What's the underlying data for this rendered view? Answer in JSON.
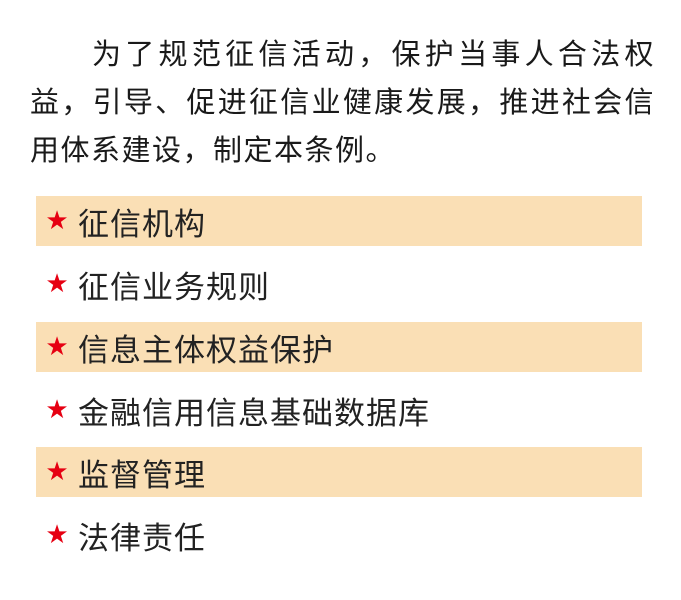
{
  "paragraph": "为了规范征信活动，保护当事人合法权益，引导、促进征信业健康发展，推进社会信用体系建设，制定本条例。",
  "items": [
    {
      "label": "征信机构",
      "highlighted": true
    },
    {
      "label": "征信业务规则",
      "highlighted": false
    },
    {
      "label": "信息主体权益保护",
      "highlighted": true
    },
    {
      "label": "金融信用信息基础数据库",
      "highlighted": false
    },
    {
      "label": "监督管理",
      "highlighted": true
    },
    {
      "label": "法律责任",
      "highlighted": false
    }
  ],
  "bullet_icon": "star-icon",
  "colors": {
    "band": "#fadfb5",
    "star": "#e60012"
  }
}
